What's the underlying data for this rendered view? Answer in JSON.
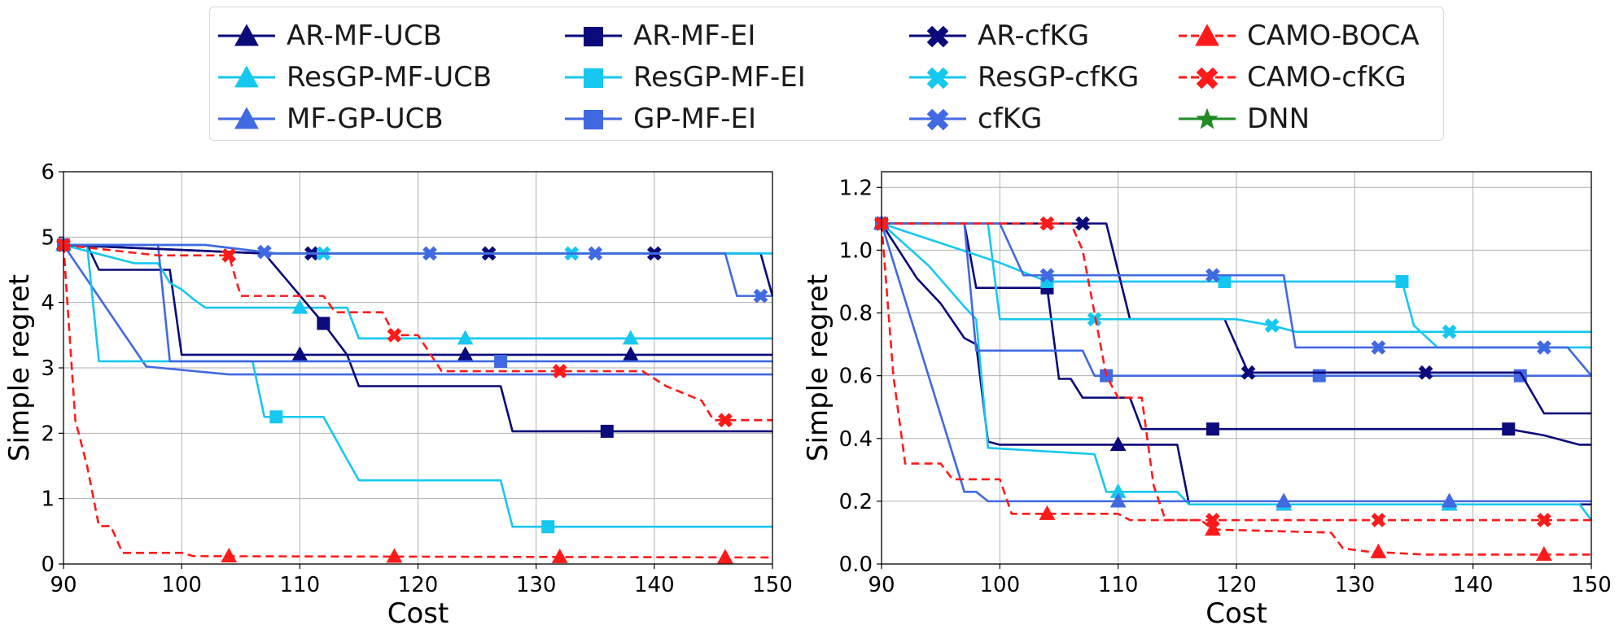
{
  "colors": {
    "navy": "#0a0a7a",
    "cyan": "#16c8f0",
    "royal": "#4169e1",
    "red": "#ff1a1a",
    "green": "#228b22"
  },
  "legend": [
    {
      "label": "AR-MF-UCB",
      "color": "#0a0a7a",
      "marker": "triangle",
      "dash": false
    },
    {
      "label": "ResGP-MF-UCB",
      "color": "#16c8f0",
      "marker": "triangle",
      "dash": false
    },
    {
      "label": "MF-GP-UCB",
      "color": "#4169e1",
      "marker": "triangle",
      "dash": false
    },
    {
      "label": "AR-MF-EI",
      "color": "#0a0a7a",
      "marker": "square",
      "dash": false
    },
    {
      "label": "ResGP-MF-EI",
      "color": "#16c8f0",
      "marker": "square",
      "dash": false
    },
    {
      "label": "GP-MF-EI",
      "color": "#4169e1",
      "marker": "square",
      "dash": false
    },
    {
      "label": "AR-cfKG",
      "color": "#0a0a7a",
      "marker": "x",
      "dash": false
    },
    {
      "label": "ResGP-cfKG",
      "color": "#16c8f0",
      "marker": "x",
      "dash": false
    },
    {
      "label": "cfKG",
      "color": "#4169e1",
      "marker": "x",
      "dash": false
    },
    {
      "label": "CAMO-BOCA",
      "color": "#ff1a1a",
      "marker": "triangle",
      "dash": true
    },
    {
      "label": "CAMO-cfKG",
      "color": "#ff1a1a",
      "marker": "x",
      "dash": true
    },
    {
      "label": "DNN",
      "color": "#228b22",
      "marker": "star",
      "dash": false
    }
  ],
  "chart_data": [
    {
      "type": "line",
      "xlabel": "Cost",
      "ylabel": "Simple regret",
      "xlim": [
        90,
        150
      ],
      "ylim": [
        0,
        6
      ],
      "xticks": [
        90,
        100,
        110,
        120,
        130,
        140,
        150
      ],
      "yticks": [
        0,
        1,
        2,
        3,
        4,
        5,
        6
      ],
      "ytick_labels": [
        "0",
        "1",
        "2",
        "3",
        "4",
        "5",
        "6"
      ],
      "grid": true,
      "series": [
        {
          "name": "AR-MF-UCB",
          "color": "#0a0a7a",
          "marker": "triangle",
          "dash": false,
          "x": [
            90,
            92,
            93,
            99,
            100,
            150
          ],
          "y": [
            4.88,
            4.88,
            4.5,
            4.5,
            3.2,
            3.2
          ],
          "markers_x": [
            90,
            110,
            124,
            138
          ]
        },
        {
          "name": "ResGP-MF-UCB",
          "color": "#16c8f0",
          "marker": "triangle",
          "dash": false,
          "x": [
            90,
            96,
            98,
            99,
            100,
            101,
            102,
            114,
            115,
            150
          ],
          "y": [
            4.88,
            4.6,
            4.6,
            4.3,
            4.2,
            4.05,
            3.92,
            3.92,
            3.45,
            3.45
          ],
          "markers_x": [
            90,
            110,
            124,
            138
          ]
        },
        {
          "name": "MF-GP-UCB",
          "color": "#4169e1",
          "marker": "triangle",
          "dash": false,
          "x": [
            90,
            97,
            104,
            150
          ],
          "y": [
            4.88,
            3.02,
            2.9,
            2.9
          ],
          "markers_x": []
        },
        {
          "name": "AR-MF-EI",
          "color": "#0a0a7a",
          "marker": "square",
          "dash": false,
          "x": [
            90,
            107,
            112,
            114,
            115,
            127,
            128,
            150
          ],
          "y": [
            4.88,
            4.75,
            3.68,
            3.2,
            2.72,
            2.72,
            2.03,
            2.03
          ],
          "markers_x": [
            90,
            112,
            136
          ]
        },
        {
          "name": "ResGP-MF-EI",
          "color": "#16c8f0",
          "marker": "square",
          "dash": false,
          "x": [
            90,
            92,
            93,
            106,
            107,
            112,
            114,
            115,
            127,
            128,
            150
          ],
          "y": [
            4.88,
            4.88,
            3.1,
            3.1,
            2.25,
            2.25,
            1.6,
            1.28,
            1.28,
            0.57,
            0.57
          ],
          "markers_x": [
            90,
            108,
            131
          ]
        },
        {
          "name": "GP-MF-EI",
          "color": "#4169e1",
          "marker": "square",
          "dash": false,
          "x": [
            90,
            98,
            99,
            150
          ],
          "y": [
            4.88,
            4.88,
            3.1,
            3.1
          ],
          "markers_x": [
            90,
            127
          ]
        },
        {
          "name": "AR-cfKG",
          "color": "#0a0a7a",
          "marker": "x",
          "dash": false,
          "x": [
            90,
            107,
            108,
            149,
            150
          ],
          "y": [
            4.88,
            4.75,
            4.75,
            4.75,
            4.1
          ],
          "markers_x": [
            90,
            111,
            126,
            140
          ]
        },
        {
          "name": "ResGP-cfKG",
          "color": "#16c8f0",
          "marker": "x",
          "dash": false,
          "x": [
            90,
            102,
            108,
            150
          ],
          "y": [
            4.88,
            4.88,
            4.75,
            4.75
          ],
          "markers_x": [
            90,
            112,
            133
          ]
        },
        {
          "name": "cfKG",
          "color": "#4169e1",
          "marker": "x",
          "dash": false,
          "x": [
            90,
            102,
            108,
            146,
            147,
            150
          ],
          "y": [
            4.88,
            4.88,
            4.75,
            4.75,
            4.1,
            4.1
          ],
          "markers_x": [
            90,
            107,
            121,
            135,
            149
          ]
        },
        {
          "name": "CAMO-BOCA",
          "color": "#ff1a1a",
          "marker": "triangle",
          "dash": true,
          "x": [
            90,
            91,
            92,
            93,
            94,
            95,
            100,
            101,
            150
          ],
          "y": [
            4.88,
            2.2,
            1.5,
            0.58,
            0.58,
            0.17,
            0.17,
            0.12,
            0.1
          ],
          "markers_x": [
            104,
            118,
            132,
            146
          ]
        },
        {
          "name": "CAMO-cfKG",
          "color": "#ff1a1a",
          "marker": "x",
          "dash": true,
          "x": [
            90,
            98,
            104,
            105,
            112,
            113,
            117,
            118,
            120,
            122,
            139,
            141,
            144,
            145,
            150
          ],
          "y": [
            4.88,
            4.72,
            4.72,
            4.1,
            4.1,
            3.85,
            3.85,
            3.5,
            3.5,
            2.95,
            2.95,
            2.72,
            2.5,
            2.2,
            2.2
          ],
          "markers_x": [
            90,
            104,
            118,
            132,
            146
          ]
        }
      ]
    },
    {
      "type": "line",
      "xlabel": "Cost",
      "ylabel": "Simple regret",
      "xlim": [
        90,
        150
      ],
      "ylim": [
        0,
        1.25
      ],
      "xticks": [
        90,
        100,
        110,
        120,
        130,
        140,
        150
      ],
      "yticks": [
        0,
        0.2,
        0.4,
        0.6,
        0.8,
        1.0,
        1.2
      ],
      "ytick_labels": [
        "0.0",
        "0.2",
        "0.4",
        "0.6",
        "0.8",
        "1.0",
        "1.2"
      ],
      "grid": true,
      "series": [
        {
          "name": "AR-MF-UCB",
          "color": "#0a0a7a",
          "marker": "triangle",
          "dash": false,
          "x": [
            90,
            93,
            95,
            97,
            98,
            99,
            100,
            115,
            116,
            150
          ],
          "y": [
            1.085,
            0.91,
            0.83,
            0.72,
            0.7,
            0.39,
            0.38,
            0.38,
            0.19,
            0.19
          ],
          "markers_x": [
            90,
            110,
            124,
            138
          ]
        },
        {
          "name": "ResGP-MF-UCB",
          "color": "#16c8f0",
          "marker": "triangle",
          "dash": false,
          "x": [
            90,
            94,
            97,
            98,
            99,
            108,
            109,
            115,
            116,
            149,
            150
          ],
          "y": [
            1.085,
            0.95,
            0.82,
            0.78,
            0.37,
            0.35,
            0.23,
            0.23,
            0.19,
            0.19,
            0.14
          ],
          "markers_x": [
            90,
            110,
            124,
            138
          ]
        },
        {
          "name": "MF-GP-UCB",
          "color": "#4169e1",
          "marker": "triangle",
          "dash": false,
          "x": [
            90,
            97,
            98,
            99,
            150
          ],
          "y": [
            1.085,
            0.23,
            0.23,
            0.2,
            0.2
          ],
          "markers_x": [
            90,
            110,
            124,
            138
          ]
        },
        {
          "name": "AR-MF-EI",
          "color": "#0a0a7a",
          "marker": "square",
          "dash": false,
          "x": [
            90,
            97,
            98,
            104,
            105,
            106,
            107,
            111,
            112,
            143,
            146,
            149,
            150
          ],
          "y": [
            1.085,
            1.085,
            0.88,
            0.88,
            0.59,
            0.59,
            0.53,
            0.53,
            0.43,
            0.43,
            0.41,
            0.38,
            0.38
          ],
          "markers_x": [
            90,
            104,
            118,
            143
          ]
        },
        {
          "name": "ResGP-MF-EI",
          "color": "#16c8f0",
          "marker": "square",
          "dash": false,
          "x": [
            90,
            100,
            104,
            118,
            119,
            134,
            135,
            137,
            150
          ],
          "y": [
            1.085,
            0.96,
            0.9,
            0.9,
            0.9,
            0.9,
            0.76,
            0.69,
            0.69
          ],
          "markers_x": [
            90,
            104,
            119,
            134
          ]
        },
        {
          "name": "GP-MF-EI",
          "color": "#4169e1",
          "marker": "square",
          "dash": false,
          "x": [
            90,
            97,
            98,
            107,
            108,
            109,
            150
          ],
          "y": [
            1.085,
            1.085,
            0.68,
            0.68,
            0.6,
            0.6,
            0.6
          ],
          "markers_x": [
            90,
            109,
            127,
            144
          ]
        },
        {
          "name": "AR-cfKG",
          "color": "#0a0a7a",
          "marker": "x",
          "dash": false,
          "x": [
            90,
            109,
            111,
            112,
            119,
            121,
            144,
            146,
            150
          ],
          "y": [
            1.085,
            1.085,
            0.78,
            0.78,
            0.78,
            0.61,
            0.61,
            0.48,
            0.48
          ],
          "markers_x": [
            90,
            107,
            121,
            136
          ]
        },
        {
          "name": "ResGP-cfKG",
          "color": "#16c8f0",
          "marker": "x",
          "dash": false,
          "x": [
            90,
            99,
            100,
            120,
            123,
            125,
            150
          ],
          "y": [
            1.085,
            1.085,
            0.78,
            0.78,
            0.76,
            0.74,
            0.74
          ],
          "markers_x": [
            90,
            108,
            123,
            138
          ]
        },
        {
          "name": "cfKG",
          "color": "#4169e1",
          "marker": "x",
          "dash": false,
          "x": [
            90,
            100,
            102,
            104,
            124,
            125,
            148,
            150
          ],
          "y": [
            1.085,
            1.085,
            0.92,
            0.92,
            0.92,
            0.69,
            0.69,
            0.6
          ],
          "markers_x": [
            90,
            104,
            118,
            132,
            146
          ]
        },
        {
          "name": "CAMO-BOCA",
          "color": "#ff1a1a",
          "marker": "triangle",
          "dash": true,
          "x": [
            90,
            91,
            92,
            95,
            96,
            99,
            100,
            101,
            110,
            111,
            117,
            118,
            128,
            129,
            131,
            136,
            150
          ],
          "y": [
            1.085,
            0.6,
            0.32,
            0.32,
            0.27,
            0.27,
            0.27,
            0.16,
            0.16,
            0.14,
            0.14,
            0.11,
            0.1,
            0.05,
            0.04,
            0.03,
            0.03
          ],
          "markers_x": [
            104,
            118,
            132,
            146
          ]
        },
        {
          "name": "CAMO-cfKG",
          "color": "#ff1a1a",
          "marker": "x",
          "dash": true,
          "x": [
            90,
            106,
            107,
            108,
            109,
            110,
            112,
            113,
            114,
            150
          ],
          "y": [
            1.085,
            1.085,
            1.0,
            0.8,
            0.6,
            0.53,
            0.53,
            0.25,
            0.14,
            0.14
          ],
          "markers_x": [
            90,
            104,
            118,
            132,
            146
          ]
        }
      ]
    }
  ]
}
